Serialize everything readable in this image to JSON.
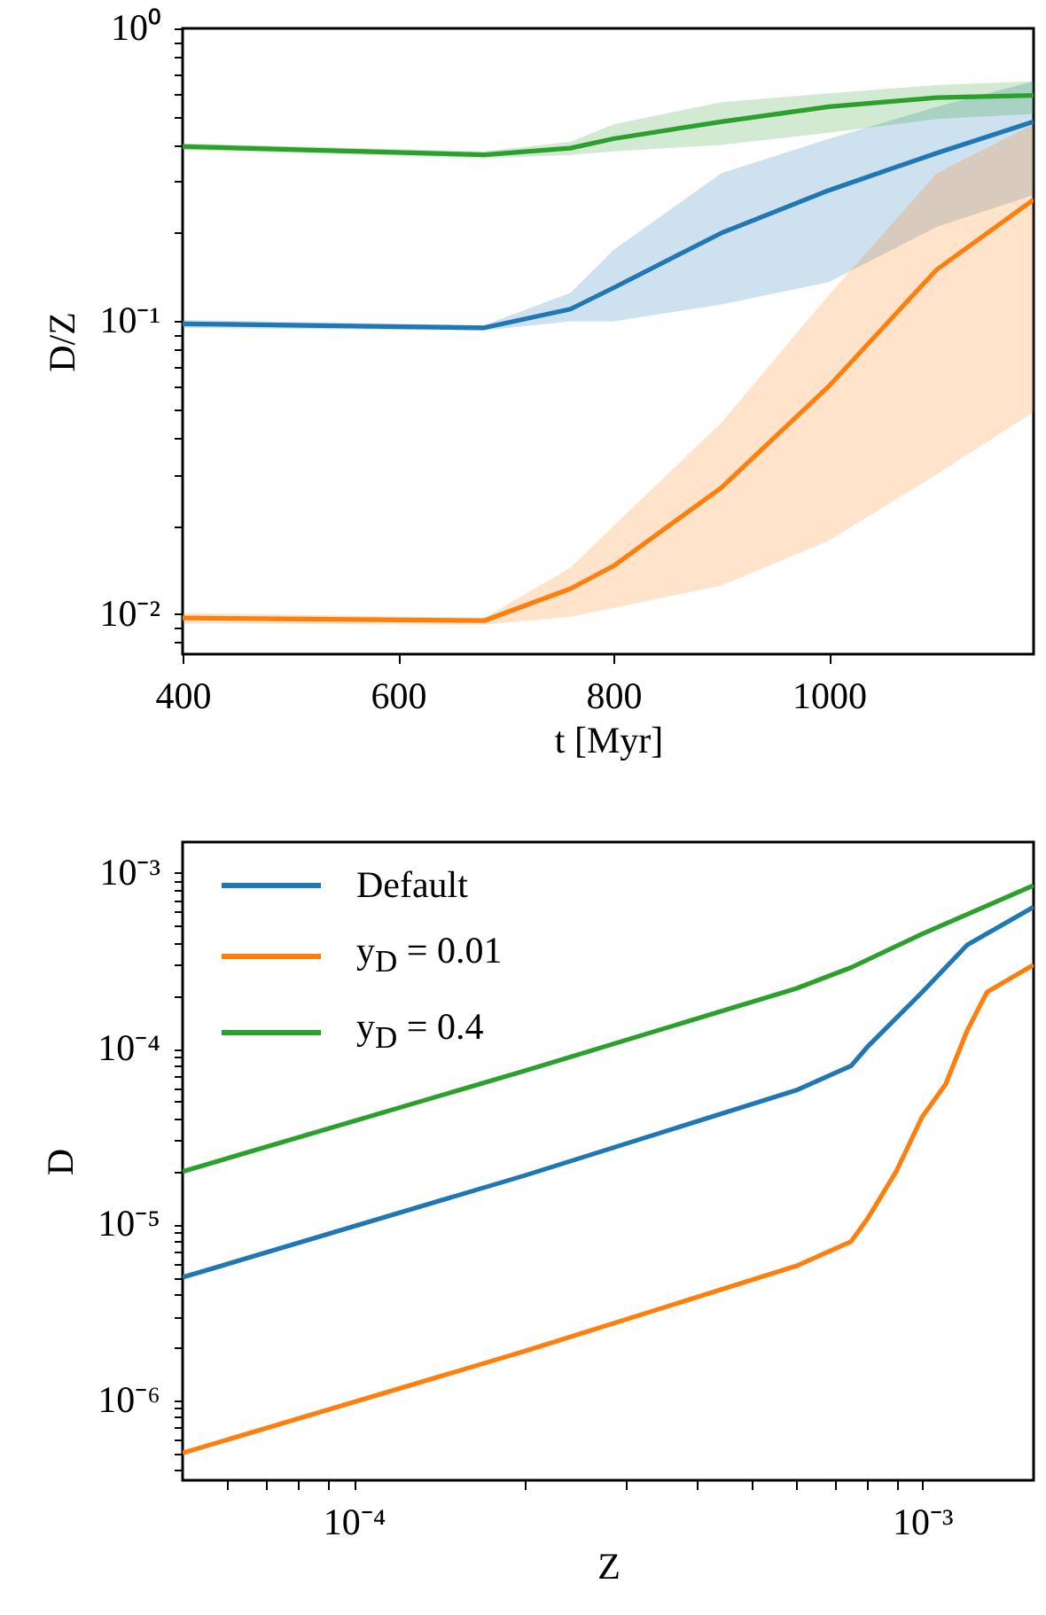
{
  "chart_data": [
    {
      "type": "line",
      "xlabel": "t [Myr]",
      "ylabel": "D/Z",
      "log": "y",
      "grid": false,
      "legend": false,
      "x": [
        400,
        680,
        760,
        800,
        900,
        1000,
        1100,
        1190
      ],
      "xlim": [
        400,
        1190
      ],
      "xticks": [
        400,
        600,
        800,
        1000
      ],
      "ylim": [
        0.0073,
        1
      ],
      "yticks": [
        {
          "value": 0.008,
          "label": null
        },
        {
          "value": 0.009,
          "label": null
        },
        {
          "value": 0.01,
          "label": "10⁻²"
        },
        {
          "value": 0.02,
          "label": null
        },
        {
          "value": 0.03,
          "label": null
        },
        {
          "value": 0.04,
          "label": null
        },
        {
          "value": 0.05,
          "label": null
        },
        {
          "value": 0.06,
          "label": null
        },
        {
          "value": 0.07,
          "label": null
        },
        {
          "value": 0.08,
          "label": null
        },
        {
          "value": 0.09,
          "label": null
        },
        {
          "value": 0.1,
          "label": "10⁻¹"
        },
        {
          "value": 0.2,
          "label": null
        },
        {
          "value": 0.3,
          "label": null
        },
        {
          "value": 0.4,
          "label": null
        },
        {
          "value": 0.5,
          "label": null
        },
        {
          "value": 0.6,
          "label": null
        },
        {
          "value": 0.7,
          "label": null
        },
        {
          "value": 0.8,
          "label": null
        },
        {
          "value": 0.9,
          "label": null
        },
        {
          "value": 1,
          "label": "10⁰"
        }
      ],
      "series": [
        {
          "color": "#1f77b4",
          "values": [
            0.098,
            0.095,
            0.11,
            0.13,
            0.2,
            0.28,
            0.375,
            0.48
          ],
          "lower": [
            0.095,
            0.093,
            0.1,
            0.1,
            0.114,
            0.136,
            0.21,
            0.27
          ],
          "upper": [
            0.101,
            0.097,
            0.125,
            0.175,
            0.32,
            0.42,
            0.54,
            0.66
          ]
        },
        {
          "color": "#ff7f0e",
          "values": [
            0.0097,
            0.0095,
            0.0122,
            0.0146,
            0.027,
            0.06,
            0.15,
            0.26
          ],
          "lower": [
            0.0093,
            0.0092,
            0.0098,
            0.0105,
            0.0125,
            0.0178,
            0.03,
            0.049
          ],
          "upper": [
            0.0101,
            0.0097,
            0.0144,
            0.02,
            0.045,
            0.123,
            0.32,
            0.47
          ]
        },
        {
          "color": "#2ca02c",
          "values": [
            0.395,
            0.37,
            0.39,
            0.42,
            0.48,
            0.54,
            0.58,
            0.59
          ],
          "lower": [
            0.385,
            0.36,
            0.37,
            0.38,
            0.4,
            0.44,
            0.49,
            0.51
          ],
          "upper": [
            0.405,
            0.38,
            0.41,
            0.47,
            0.56,
            0.6,
            0.64,
            0.66
          ]
        }
      ]
    },
    {
      "type": "line",
      "xlabel": "Z",
      "ylabel": "D",
      "log": "xy",
      "grid": false,
      "legend": "top left",
      "xlim": [
        5e-05,
        0.00157
      ],
      "xticks": [
        {
          "value": 6e-05,
          "label": null
        },
        {
          "value": 7e-05,
          "label": null
        },
        {
          "value": 8e-05,
          "label": null
        },
        {
          "value": 9e-05,
          "label": null
        },
        {
          "value": 0.0001,
          "label": "10⁻⁴"
        },
        {
          "value": 0.0002,
          "label": null
        },
        {
          "value": 0.0003,
          "label": null
        },
        {
          "value": 0.0004,
          "label": null
        },
        {
          "value": 0.0005,
          "label": null
        },
        {
          "value": 0.0006,
          "label": null
        },
        {
          "value": 0.0007,
          "label": null
        },
        {
          "value": 0.0008,
          "label": null
        },
        {
          "value": 0.0009,
          "label": null
        },
        {
          "value": 0.001,
          "label": "10⁻³"
        }
      ],
      "ylim": [
        3.5e-07,
        0.0015
      ],
      "yticks": [
        {
          "value": 4e-07,
          "label": null
        },
        {
          "value": 5e-07,
          "label": null
        },
        {
          "value": 6e-07,
          "label": null
        },
        {
          "value": 7e-07,
          "label": null
        },
        {
          "value": 8e-07,
          "label": null
        },
        {
          "value": 9e-07,
          "label": null
        },
        {
          "value": 1e-06,
          "label": "10⁻⁶"
        },
        {
          "value": 2e-06,
          "label": null
        },
        {
          "value": 3e-06,
          "label": null
        },
        {
          "value": 4e-06,
          "label": null
        },
        {
          "value": 5e-06,
          "label": null
        },
        {
          "value": 6e-06,
          "label": null
        },
        {
          "value": 7e-06,
          "label": null
        },
        {
          "value": 8e-06,
          "label": null
        },
        {
          "value": 9e-06,
          "label": null
        },
        {
          "value": 1e-05,
          "label": "10⁻⁵"
        },
        {
          "value": 2e-05,
          "label": null
        },
        {
          "value": 3e-05,
          "label": null
        },
        {
          "value": 4e-05,
          "label": null
        },
        {
          "value": 5e-05,
          "label": null
        },
        {
          "value": 6e-05,
          "label": null
        },
        {
          "value": 7e-05,
          "label": null
        },
        {
          "value": 8e-05,
          "label": null
        },
        {
          "value": 9e-05,
          "label": null
        },
        {
          "value": 0.0001,
          "label": "10⁻⁴"
        },
        {
          "value": 0.0002,
          "label": null
        },
        {
          "value": 0.0003,
          "label": null
        },
        {
          "value": 0.0004,
          "label": null
        },
        {
          "value": 0.0005,
          "label": null
        },
        {
          "value": 0.0006,
          "label": null
        },
        {
          "value": 0.0007,
          "label": null
        },
        {
          "value": 0.0008,
          "label": null
        },
        {
          "value": 0.0009,
          "label": null
        },
        {
          "value": 0.001,
          "label": "10⁻³"
        }
      ],
      "series": [
        {
          "name": "Default",
          "color": "#1f77b4",
          "x": [
            5e-05,
            0.0002,
            0.0006,
            0.00075,
            0.0008,
            0.001,
            0.0012,
            0.00157
          ],
          "values": [
            5e-06,
            1.9e-05,
            5.8e-05,
            8e-05,
            0.000102,
            0.00021,
            0.00039,
            0.00064
          ]
        },
        {
          "name": "y$_{D}$ = 0.01",
          "color": "#ff7f0e",
          "x": [
            5e-05,
            0.0002,
            0.0006,
            0.00075,
            0.0008,
            0.0009,
            0.001,
            0.0011,
            0.0012,
            0.0013,
            0.00157
          ],
          "values": [
            5e-07,
            1.9e-06,
            5.8e-06,
            8e-06,
            1.07e-05,
            2e-05,
            4.1e-05,
            6.3e-05,
            0.000127,
            0.00021,
            0.0003
          ]
        },
        {
          "name": "y$_{D}$ = 0.4",
          "color": "#2ca02c",
          "x": [
            5e-05,
            0.0002,
            0.0006,
            0.00075,
            0.001,
            0.00157
          ],
          "values": [
            2e-05,
            7.5e-05,
            0.00022,
            0.00029,
            0.00045,
            0.00085
          ]
        }
      ]
    }
  ]
}
